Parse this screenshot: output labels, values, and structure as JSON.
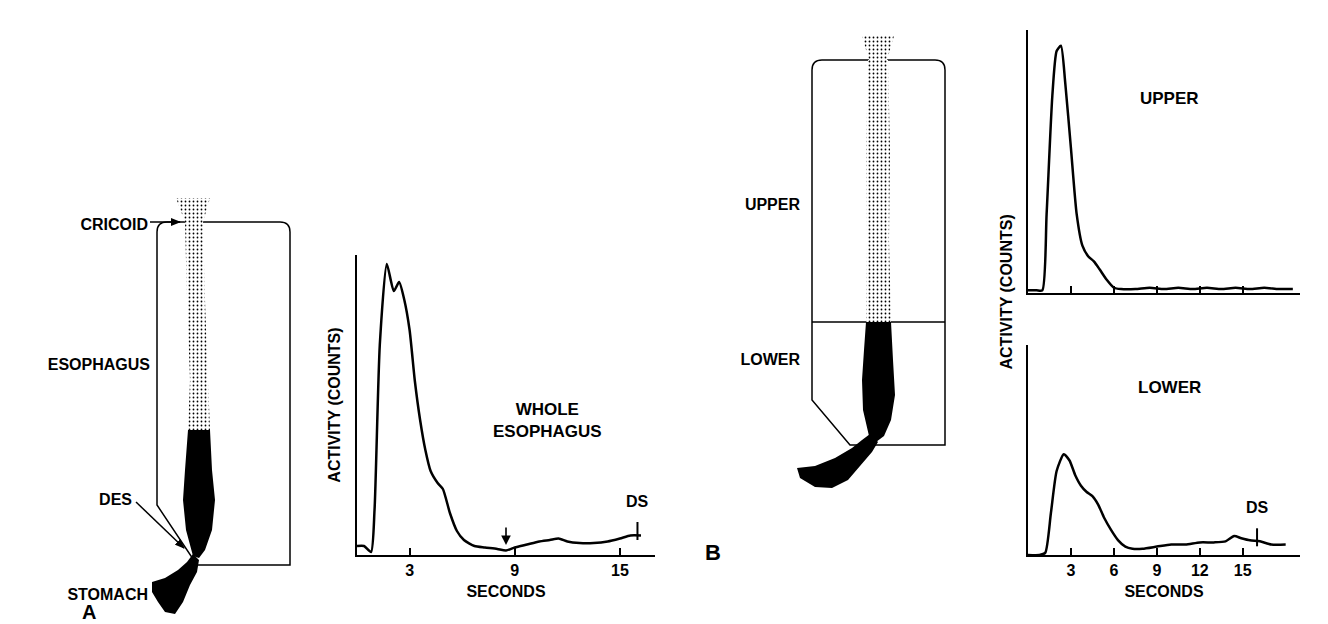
{
  "chart_data": [
    {
      "type": "line",
      "title": "WHOLE ESOPHAGUS",
      "x_label": "SECONDS",
      "y_label": "ACTIVITY (COUNTS)",
      "x": [
        0,
        0.4,
        0.8,
        1.0,
        1.3,
        1.7,
        2.1,
        2.4,
        2.7,
        3.0,
        3.3,
        3.6,
        3.9,
        4.2,
        4.6,
        4.9,
        5.3,
        5.7,
        6.1,
        6.7,
        7.3,
        8.0,
        8.5,
        9.0,
        9.7,
        10.4,
        11.0,
        11.5,
        12.0,
        12.7,
        13.5,
        14.3,
        15.0,
        15.6,
        16.2
      ],
      "values": [
        3,
        3,
        1,
        15,
        70,
        97,
        88,
        91,
        85,
        75,
        58,
        45,
        35,
        28,
        24,
        22,
        14,
        8,
        5,
        3,
        2.5,
        2,
        1.5,
        2.5,
        3.5,
        4.5,
        5,
        5.5,
        4.5,
        4,
        4,
        4.5,
        5.5,
        6.5,
        6.5
      ],
      "xlim": [
        0,
        17
      ],
      "ylim": [
        0,
        100
      ],
      "xticks": [
        3,
        9,
        15
      ],
      "yticks": [],
      "tick_labels": "x",
      "color": "#000000",
      "annotations": [
        {
          "x": 8.5,
          "y": 2,
          "arrow": true
        },
        {
          "x": 16,
          "y": 7,
          "text": "DS"
        }
      ]
    },
    {
      "type": "line",
      "title": "UPPER",
      "x": [
        0,
        0.6,
        1.0,
        1.3,
        1.7,
        2.0,
        2.3,
        2.6,
        3.0,
        3.4,
        3.8,
        4.2,
        4.6,
        5.0,
        5.5,
        6.0,
        6.5,
        7.5,
        8.5,
        9.5,
        10.5,
        11.5,
        12.5,
        13.5,
        14.5,
        15.5,
        16.5,
        17.5,
        18.5
      ],
      "values": [
        1,
        1,
        1,
        30,
        75,
        92,
        94,
        80,
        55,
        30,
        18,
        14,
        12,
        9,
        5,
        2,
        1.5,
        1.5,
        2,
        1.5,
        2,
        1.5,
        2,
        1.5,
        2,
        1.5,
        2,
        1.5,
        1.5
      ],
      "xlim": [
        0,
        19
      ],
      "ylim": [
        0,
        100
      ],
      "xticks": [
        3,
        6,
        9,
        12,
        15
      ],
      "yticks": [],
      "tick_labels": false,
      "color": "#000000"
    },
    {
      "type": "line",
      "title": "LOWER",
      "x_label": "SECONDS",
      "y_label": "ACTIVITY (COUNTS)",
      "x": [
        0,
        0.8,
        1.2,
        1.6,
        2.0,
        2.5,
        2.9,
        3.3,
        3.7,
        4.1,
        4.5,
        4.9,
        5.3,
        5.8,
        6.3,
        6.8,
        7.3,
        8.0,
        9.0,
        10.0,
        11.0,
        12.0,
        13.0,
        13.8,
        14.4,
        14.9,
        15.5,
        16.2,
        17.0,
        18.0
      ],
      "values": [
        0,
        0,
        1,
        20,
        40,
        48,
        45,
        38,
        33,
        30,
        28,
        24,
        18,
        12,
        7,
        4,
        3,
        3,
        4,
        5,
        5,
        6,
        6,
        6.5,
        9,
        8,
        7,
        6.5,
        5,
        5
      ],
      "xlim": [
        0,
        19
      ],
      "ylim": [
        0,
        100
      ],
      "xticks": [
        3,
        6,
        9,
        12,
        15
      ],
      "yticks": [],
      "tick_labels": "x",
      "color": "#000000",
      "annotations": [
        {
          "x": 16,
          "y": 7,
          "text": "DS"
        }
      ]
    }
  ],
  "diagrams": {
    "A": {
      "panel": "A",
      "labels": {
        "cricoid": "CRICOID",
        "esophagus": "ESOPHAGUS",
        "des": "DES",
        "stomach": "STOMACH"
      }
    },
    "B": {
      "panel": "B",
      "labels": {
        "upper": "UPPER",
        "lower": "LOWER"
      }
    }
  }
}
